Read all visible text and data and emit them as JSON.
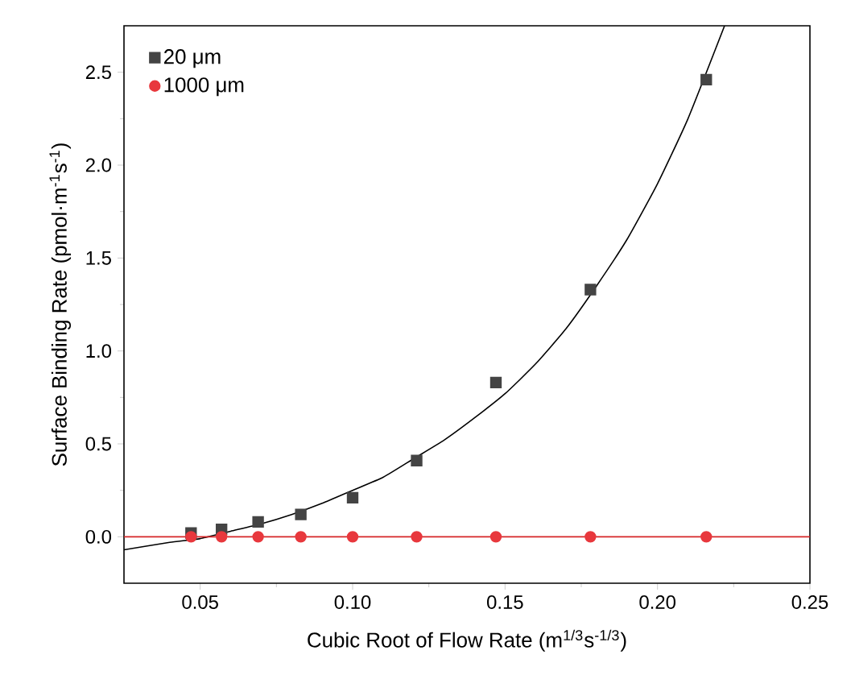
{
  "chart_data": {
    "type": "scatter",
    "xlabel": "Cubic Root of Flow Rate (m$^{1/3}$s$^{-1/3}$)",
    "ylabel": "Surface Binding Rate (pmol·m$^{-1}$s$^{-1}$)",
    "xlim": [
      0.025,
      0.25
    ],
    "ylim": [
      -0.25,
      2.75
    ],
    "xticks": [
      0.05,
      {
        "value": 0.1,
        "label": "0.10"
      },
      0.15,
      {
        "value": 0.2,
        "label": "0.20"
      },
      0.25
    ],
    "yticks": [
      {
        "value": 0,
        "label": "0.0"
      },
      0.5,
      {
        "value": 1,
        "label": "1.0"
      },
      1.5,
      {
        "value": 2,
        "label": "2.0"
      },
      2.5
    ],
    "legend": "top left",
    "grid": false,
    "series": [
      {
        "name": "20 μm",
        "marker": "square",
        "color": "#444444",
        "x": [
          0.047,
          0.057,
          0.069,
          0.083,
          0.1,
          0.121,
          0.147,
          0.178,
          0.216
        ],
        "values": [
          0.02,
          0.04,
          0.08,
          0.12,
          0.21,
          0.41,
          0.83,
          1.33,
          2.46
        ]
      },
      {
        "name": "1000 μm",
        "marker": "circle",
        "color": "#e8383d",
        "x": [
          0.047,
          0.057,
          0.069,
          0.083,
          0.1,
          0.121,
          0.147,
          0.178,
          0.216
        ],
        "values": [
          0,
          0,
          0,
          0,
          0,
          0,
          0,
          0,
          0
        ]
      },
      {
        "type": "line",
        "marker": "none",
        "color": "#000000",
        "x": [
          0.025,
          0.04,
          0.05,
          0.06,
          0.07,
          0.08,
          0.09,
          0.1,
          0.11,
          0.12,
          0.13,
          0.14,
          0.15,
          0.16,
          0.17,
          0.18,
          0.19,
          0.2,
          0.21,
          0.222
        ],
        "values": [
          -0.07,
          -0.03,
          -0.01,
          0.03,
          0.07,
          0.12,
          0.18,
          0.25,
          0.32,
          0.42,
          0.52,
          0.64,
          0.77,
          0.93,
          1.12,
          1.35,
          1.6,
          1.9,
          2.25,
          2.75
        ]
      },
      {
        "type": "line",
        "marker": "none",
        "color": "#d62728",
        "x": [
          0.025,
          0.25
        ],
        "values": [
          0,
          0
        ]
      }
    ]
  }
}
